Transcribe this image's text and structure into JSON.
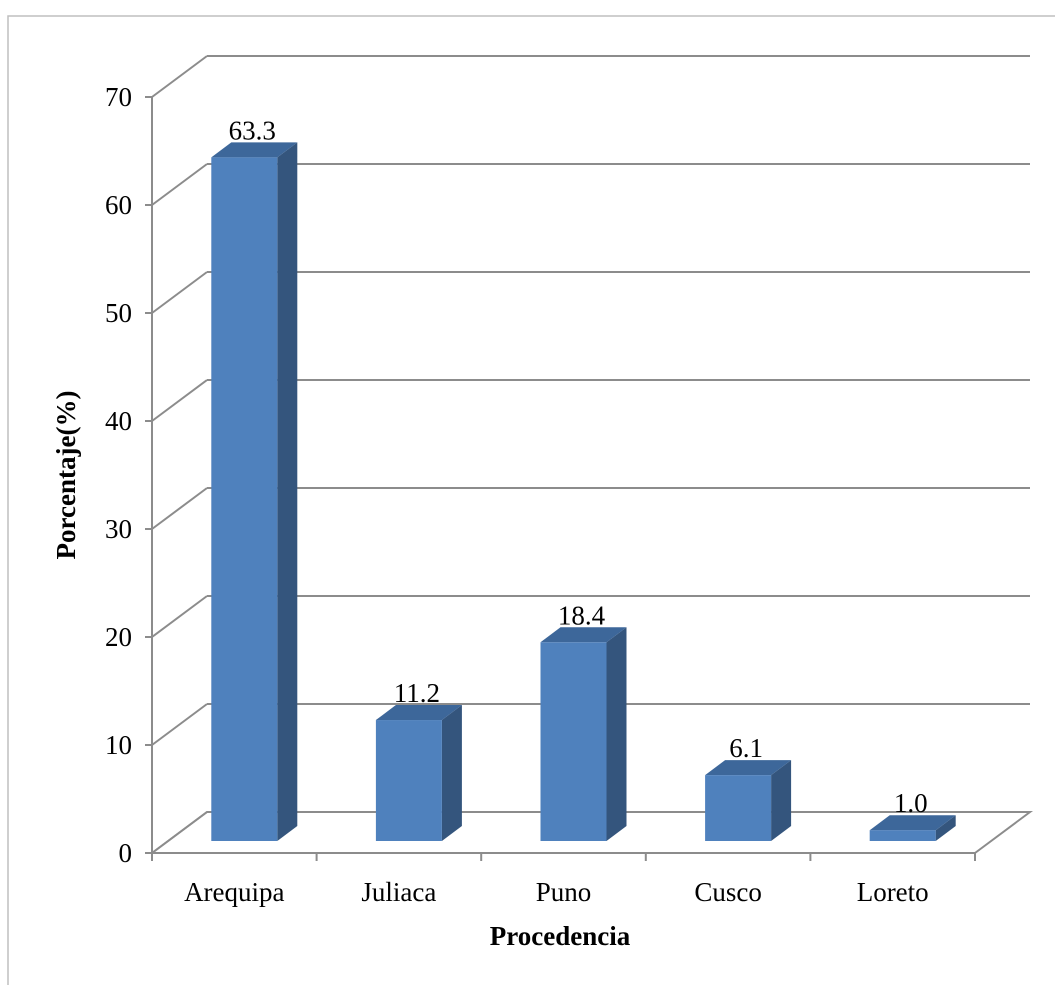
{
  "chart_data": {
    "type": "bar",
    "style": "3d-clustered-column",
    "categories": [
      "Arequipa",
      "Juliaca",
      "Puno",
      "Cusco",
      "Loreto"
    ],
    "values": [
      63.3,
      11.2,
      18.4,
      6.1,
      1.0
    ],
    "data_labels": [
      "63.3",
      "11.2",
      "18.4",
      "6.1",
      "1.0"
    ],
    "y_ticks": [
      "0",
      "10",
      "20",
      "30",
      "40",
      "50",
      "60",
      "70"
    ],
    "ylim": [
      0,
      70
    ],
    "xlabel": "Procedencia",
    "ylabel": "Porcentaje(%)",
    "grid": true,
    "legend": "none",
    "colors": {
      "bar_front": "#4f81bd",
      "bar_side": "#34557d",
      "bar_top": "#3d679a",
      "gridline": "#8c8c8c",
      "axis": "#8c8c8c"
    }
  }
}
